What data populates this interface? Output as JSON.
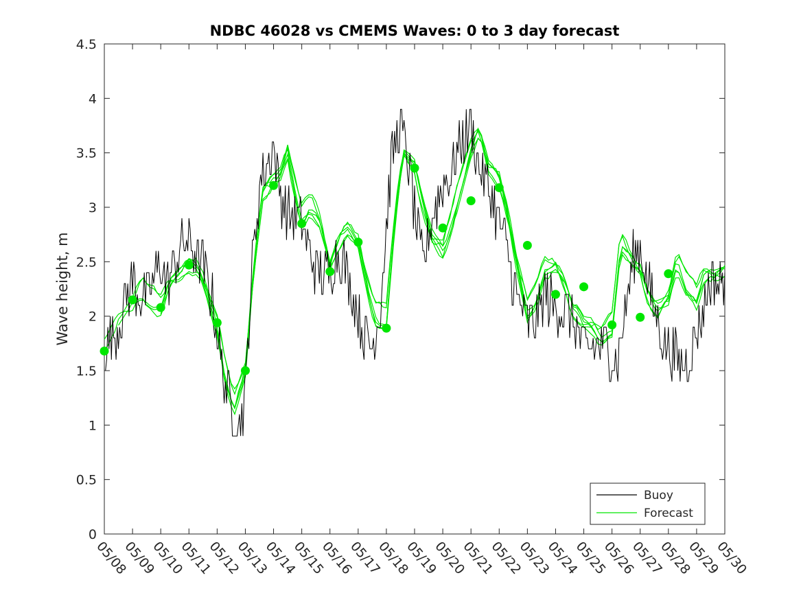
{
  "chart_data": {
    "type": "line",
    "title": "NDBC 46028 vs CMEMS Waves: 0 to 3 day forecast",
    "xlabel": "",
    "ylabel": "Wave height, m",
    "xlim": [
      0,
      22
    ],
    "ylim": [
      0,
      4.5
    ],
    "x_tick_labels": [
      "05/08",
      "05/09",
      "05/10",
      "05/11",
      "05/12",
      "05/13",
      "05/14",
      "05/15",
      "05/16",
      "05/17",
      "05/18",
      "05/19",
      "05/20",
      "05/21",
      "05/22",
      "05/23",
      "05/24",
      "05/25",
      "05/26",
      "05/27",
      "05/28",
      "05/29",
      "05/30"
    ],
    "y_ticks": [
      0,
      0.5,
      1,
      1.5,
      2,
      2.5,
      3,
      3.5,
      4,
      4.5
    ],
    "y_tick_labels": [
      "0",
      "0.5",
      "1",
      "1.5",
      "2",
      "2.5",
      "3",
      "3.5",
      "4",
      "4.5"
    ],
    "legend": {
      "placement": "bottom-right",
      "entries": [
        {
          "label": "Buoy",
          "color": "#000000"
        },
        {
          "label": "Forecast",
          "color": "#00e600"
        }
      ]
    },
    "colors": {
      "buoy": "#000000",
      "forecast": "#00e600"
    },
    "grid": false,
    "buoy_anchor_x": [
      0,
      0.1,
      0.2,
      0.5,
      0.8,
      1.0,
      1.2,
      1.5,
      1.8,
      2.0,
      2.2,
      2.5,
      2.8,
      3.0,
      3.2,
      3.5,
      3.8,
      4.0,
      4.2,
      4.5,
      4.8,
      5.0,
      5.2,
      5.5,
      5.8,
      6.0,
      6.2,
      6.5,
      6.8,
      7.0,
      7.3,
      7.6,
      8.0,
      8.2,
      8.5,
      8.8,
      9.0,
      9.2,
      9.5,
      9.8,
      10.0,
      10.2,
      10.5,
      10.8,
      11.0,
      11.3,
      11.6,
      12.0,
      12.3,
      12.6,
      13.0,
      13.3,
      13.6,
      13.8,
      14.0,
      14.3,
      14.6,
      15.0,
      15.3,
      15.6,
      16.0,
      16.3,
      16.6,
      17.0,
      17.3,
      17.6,
      18.0,
      18.2,
      18.5,
      18.8,
      19.0,
      19.2,
      19.4,
      19.6,
      19.8,
      20.0,
      20.3,
      20.6,
      20.9,
      21.2,
      21.5,
      21.8,
      22.0
    ],
    "buoy_anchor_y": [
      1.65,
      1.75,
      1.8,
      1.9,
      2.2,
      2.35,
      2.2,
      2.15,
      2.4,
      2.5,
      2.3,
      2.45,
      2.7,
      2.65,
      2.6,
      2.45,
      2.2,
      1.85,
      1.5,
      1.15,
      1.0,
      1.25,
      2.3,
      3.2,
      3.4,
      3.55,
      3.15,
      2.95,
      2.9,
      2.85,
      2.55,
      2.4,
      2.4,
      2.55,
      2.5,
      2.2,
      2.0,
      1.8,
      1.75,
      2.1,
      2.8,
      3.5,
      3.75,
      3.4,
      2.95,
      2.45,
      2.9,
      3.2,
      3.3,
      3.6,
      3.75,
      3.35,
      3.2,
      3.05,
      2.85,
      2.6,
      2.2,
      1.95,
      1.95,
      2.2,
      2.1,
      2.05,
      2.0,
      1.7,
      1.7,
      1.75,
      1.65,
      1.6,
      2.1,
      2.6,
      2.65,
      2.4,
      2.15,
      2.0,
      1.8,
      1.7,
      1.6,
      1.55,
      1.75,
      2.0,
      2.35,
      2.3,
      2.4
    ],
    "forecast_anchor_x": [
      0,
      0.5,
      1.0,
      1.3,
      1.6,
      2.0,
      2.3,
      2.6,
      3.0,
      3.3,
      3.6,
      4.0,
      4.3,
      4.6,
      5.0,
      5.3,
      5.6,
      6.0,
      6.2,
      6.5,
      6.8,
      7.0,
      7.3,
      7.6,
      8.0,
      8.3,
      8.6,
      9.0,
      9.3,
      9.6,
      10.0,
      10.3,
      10.6,
      11.0,
      11.3,
      11.6,
      12.0,
      12.3,
      12.6,
      13.0,
      13.3,
      13.6,
      14.0,
      14.3,
      14.6,
      15.0,
      15.3,
      15.6,
      16.0,
      16.3,
      16.6,
      17.0,
      17.3,
      17.6,
      18.0,
      18.3,
      18.6,
      19.0,
      19.3,
      19.6,
      20.0,
      20.3,
      20.6,
      21.0,
      21.3,
      21.6,
      22.0
    ],
    "forecast_anchor_y": [
      1.7,
      2.0,
      2.15,
      2.3,
      2.2,
      2.1,
      2.3,
      2.35,
      2.45,
      2.45,
      2.3,
      1.95,
      1.5,
      1.2,
      1.5,
      2.4,
      3.1,
      3.25,
      3.3,
      3.55,
      3.15,
      2.95,
      3.05,
      2.9,
      2.45,
      2.65,
      2.8,
      2.7,
      2.35,
      2.05,
      2.0,
      2.9,
      3.5,
      3.35,
      3.0,
      2.75,
      2.65,
      2.9,
      3.2,
      3.55,
      3.7,
      3.35,
      3.25,
      2.95,
      2.55,
      2.1,
      2.2,
      2.45,
      2.45,
      2.3,
      2.05,
      1.95,
      1.95,
      1.85,
      1.95,
      2.7,
      2.55,
      2.4,
      2.15,
      2.05,
      2.2,
      2.55,
      2.35,
      2.2,
      2.4,
      2.35,
      2.4
    ],
    "forecast_markers": [
      {
        "x": 0,
        "y": 1.68
      },
      {
        "x": 1,
        "y": 2.15
      },
      {
        "x": 2,
        "y": 2.08
      },
      {
        "x": 3,
        "y": 2.47
      },
      {
        "x": 4,
        "y": 1.94
      },
      {
        "x": 5,
        "y": 1.5
      },
      {
        "x": 6,
        "y": 3.2
      },
      {
        "x": 7,
        "y": 2.85
      },
      {
        "x": 8,
        "y": 2.41
      },
      {
        "x": 9,
        "y": 2.68
      },
      {
        "x": 10,
        "y": 1.89
      },
      {
        "x": 11,
        "y": 3.36
      },
      {
        "x": 12,
        "y": 2.81
      },
      {
        "x": 13,
        "y": 3.06
      },
      {
        "x": 14,
        "y": 3.18
      },
      {
        "x": 15,
        "y": 2.65
      },
      {
        "x": 16,
        "y": 2.2
      },
      {
        "x": 17,
        "y": 2.27
      },
      {
        "x": 18,
        "y": 1.92
      },
      {
        "x": 19,
        "y": 1.99
      },
      {
        "x": 20,
        "y": 2.39
      }
    ]
  }
}
